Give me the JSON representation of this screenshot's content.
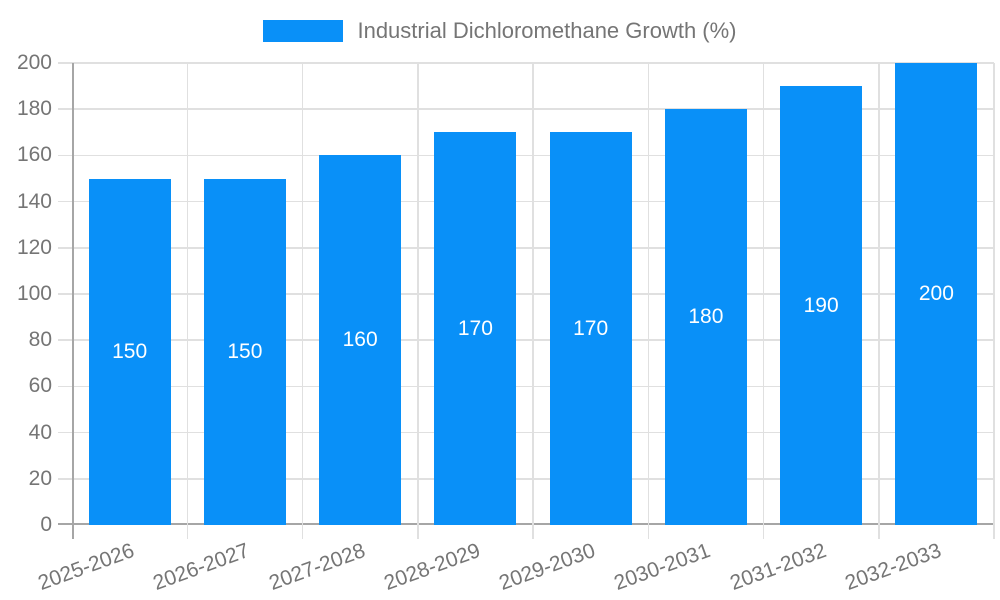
{
  "legend": {
    "label": "Industrial Dichloromethane Growth (%)"
  },
  "chart_data": {
    "type": "bar",
    "title": "Industrial Dichloromethane Growth (%)",
    "categories": [
      "2025-2026",
      "2026-2027",
      "2027-2028",
      "2028-2029",
      "2029-2030",
      "2030-2031",
      "2031-2032",
      "2032-2033"
    ],
    "values": [
      150,
      150,
      160,
      170,
      170,
      180,
      190,
      200
    ],
    "bar_labels": [
      "150",
      "150",
      "160",
      "170",
      "170",
      "180",
      "190",
      "200"
    ],
    "xlabel": "",
    "ylabel": "",
    "ylim": [
      0,
      200
    ],
    "ytick_step": 20,
    "yticks": [
      0,
      20,
      40,
      60,
      80,
      100,
      120,
      140,
      160,
      180,
      200
    ],
    "grid": true,
    "legend_position": "top",
    "colors": {
      "bar": "#0990f8",
      "bar_label_text": "#ffffff",
      "axis_text": "#757575",
      "axis_line": "#a6a6a6",
      "gridline": "#e0e0e0",
      "background": "#ffffff"
    }
  }
}
